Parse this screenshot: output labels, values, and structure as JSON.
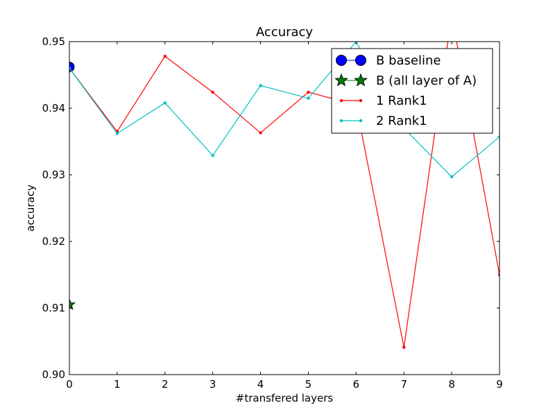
{
  "chart_data": {
    "type": "line",
    "title": "Accuracy",
    "xlabel": "#transfered layers",
    "ylabel": "accuracy",
    "xlim": [
      0,
      9
    ],
    "ylim": [
      0.9,
      0.95
    ],
    "xticks": [
      "0",
      "1",
      "2",
      "3",
      "4",
      "5",
      "6",
      "7",
      "8",
      "9"
    ],
    "yticks": [
      "0.90",
      "0.91",
      "0.92",
      "0.93",
      "0.94",
      "0.95"
    ],
    "legend_position": "top-right",
    "grid": false,
    "series": [
      {
        "name": "B baseline",
        "color": "#0000ff",
        "marker": "circle",
        "x": [
          0
        ],
        "y": [
          0.9462
        ]
      },
      {
        "name": "B (all layer of A)",
        "color": "#008000",
        "marker": "star",
        "x": [
          0
        ],
        "y": [
          0.9105
        ]
      },
      {
        "name": "1 Rank1",
        "color": "#ff0000",
        "marker": "dot",
        "x": [
          0,
          1,
          2,
          3,
          4,
          5,
          6,
          7,
          8,
          9
        ],
        "y": [
          0.946,
          0.9365,
          0.9478,
          0.9424,
          0.9363,
          0.9424,
          0.9405,
          0.9041,
          0.954,
          0.915
        ]
      },
      {
        "name": "2 Rank1",
        "color": "#00bfbf",
        "marker": "dot",
        "x": [
          0,
          1,
          2,
          3,
          4,
          5,
          6,
          7,
          8,
          9
        ],
        "y": [
          0.946,
          0.9362,
          0.9408,
          0.9329,
          0.9434,
          0.9415,
          0.95,
          0.937,
          0.9297,
          0.9357
        ]
      }
    ]
  }
}
